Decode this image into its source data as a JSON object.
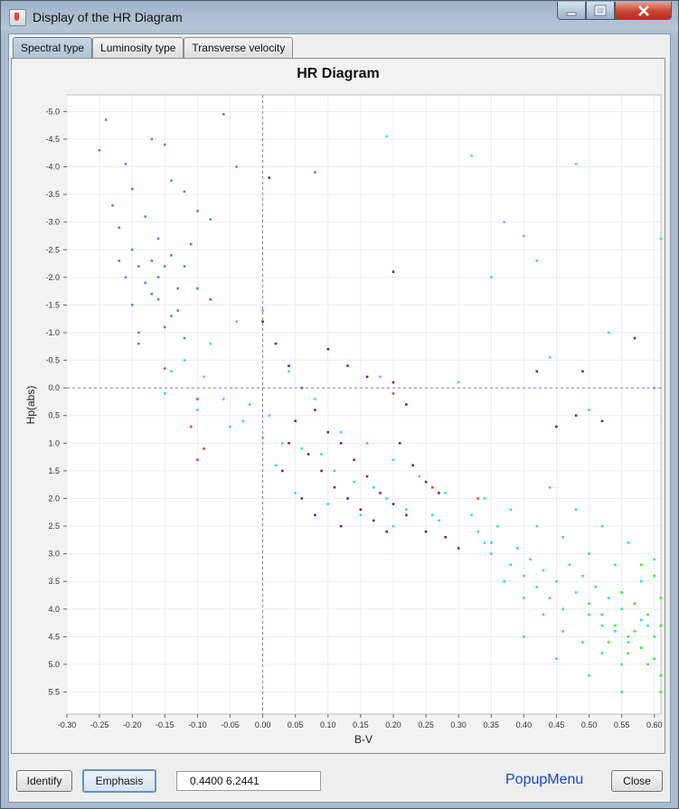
{
  "window": {
    "title": "Display of the HR Diagram",
    "controls": [
      "minimize",
      "maximize",
      "close"
    ]
  },
  "tabs": [
    {
      "label": "Spectral type",
      "selected": true
    },
    {
      "label": "Luminosity type",
      "selected": false
    },
    {
      "label": "Transverse velocity",
      "selected": false
    }
  ],
  "chart_data": {
    "type": "scatter",
    "title": "HR Diagram",
    "xlabel": "B-V",
    "ylabel": "Hp(abs)",
    "xlim": [
      -0.3,
      0.61
    ],
    "ylim": [
      -5.3,
      5.9
    ],
    "y_inverted": true,
    "grid": true,
    "x_ticks": [
      "-0.30",
      "-0.25",
      "-0.20",
      "-0.15",
      "-0.10",
      "-0.05",
      "0.00",
      "0.05",
      "0.10",
      "0.15",
      "0.20",
      "0.25",
      "0.30",
      "0.35",
      "0.40",
      "0.45",
      "0.50",
      "0.55",
      "0.60"
    ],
    "y_ticks": [
      "-5.0",
      "-4.5",
      "-4.0",
      "-3.5",
      "-3.0",
      "-2.5",
      "-2.0",
      "-1.5",
      "-1.0",
      "-0.5",
      "0.0",
      "0.5",
      "1.0",
      "1.5",
      "2.0",
      "2.5",
      "3.0",
      "3.5",
      "4.0",
      "4.5",
      "5.0",
      "5.5"
    ],
    "crosshair": {
      "x": 0.0,
      "y": 0.0
    },
    "series": [
      {
        "color": "#5b82e0",
        "points": [
          [
            -0.24,
            -4.85
          ],
          [
            -0.25,
            -4.3
          ],
          [
            -0.21,
            -4.05
          ],
          [
            -0.17,
            -4.5
          ],
          [
            -0.15,
            -4.4
          ],
          [
            -0.14,
            -3.75
          ],
          [
            -0.12,
            -3.55
          ],
          [
            -0.2,
            -3.6
          ],
          [
            -0.23,
            -3.3
          ],
          [
            -0.18,
            -3.1
          ],
          [
            -0.22,
            -2.9
          ],
          [
            -0.16,
            -2.7
          ],
          [
            -0.2,
            -2.5
          ],
          [
            -0.19,
            -2.2
          ],
          [
            -0.16,
            -2.0
          ],
          [
            -0.17,
            -1.7
          ],
          [
            -0.2,
            -1.5
          ],
          [
            -0.14,
            -1.3
          ],
          [
            -0.19,
            -1.0
          ],
          [
            -0.14,
            -2.4
          ],
          [
            -0.12,
            -2.2
          ],
          [
            -0.1,
            -3.2
          ],
          [
            -0.08,
            -3.05
          ],
          [
            -0.06,
            -4.95
          ],
          [
            -0.04,
            -4.0
          ],
          [
            0.08,
            -3.9
          ],
          [
            -0.22,
            -2.3
          ],
          [
            -0.18,
            -1.9
          ],
          [
            -0.16,
            -1.6
          ],
          [
            -0.15,
            -2.2
          ],
          [
            -0.13,
            -1.8
          ],
          [
            -0.11,
            -2.6
          ],
          [
            -0.17,
            -2.3
          ],
          [
            -0.21,
            -2.0
          ],
          [
            -0.19,
            -0.8
          ],
          [
            -0.15,
            -1.1
          ],
          [
            -0.13,
            -1.4
          ],
          [
            -0.12,
            -0.9
          ],
          [
            -0.1,
            -1.8
          ]
        ]
      },
      {
        "color": "#3ad8e6",
        "points": [
          [
            -0.15,
            0.1
          ],
          [
            -0.1,
            0.4
          ],
          [
            -0.05,
            0.7
          ],
          [
            0.0,
            0.9
          ],
          [
            0.02,
            1.4
          ],
          [
            0.05,
            1.9
          ],
          [
            0.1,
            2.1
          ],
          [
            0.15,
            2.3
          ],
          [
            0.2,
            2.5
          ],
          [
            0.25,
            2.6
          ],
          [
            0.3,
            2.9
          ],
          [
            0.35,
            3.0
          ],
          [
            -0.12,
            -0.5
          ],
          [
            -0.08,
            -0.8
          ],
          [
            -0.04,
            -1.2
          ],
          [
            0.0,
            -1.4
          ],
          [
            0.04,
            -0.3
          ],
          [
            0.08,
            0.2
          ],
          [
            0.12,
            0.8
          ],
          [
            0.16,
            1.0
          ],
          [
            0.2,
            1.3
          ],
          [
            0.24,
            1.6
          ],
          [
            0.28,
            1.9
          ],
          [
            0.32,
            2.3
          ],
          [
            -0.02,
            0.3
          ],
          [
            0.06,
            1.1
          ],
          [
            0.14,
            1.7
          ],
          [
            0.22,
            2.2
          ],
          [
            0.18,
            -0.2
          ],
          [
            0.3,
            -0.1
          ],
          [
            0.48,
            -4.05
          ],
          [
            0.32,
            -4.2
          ],
          [
            0.19,
            -4.55
          ],
          [
            0.37,
            -3.0
          ],
          [
            0.4,
            -2.75
          ],
          [
            0.42,
            -2.3
          ],
          [
            0.35,
            -2.0
          ],
          [
            0.44,
            -0.55
          ],
          [
            0.5,
            0.4
          ],
          [
            -0.14,
            -0.3
          ],
          [
            -0.06,
            0.2
          ],
          [
            0.01,
            0.5
          ],
          [
            0.09,
            1.2
          ],
          [
            0.17,
            1.8
          ],
          [
            0.26,
            2.3
          ],
          [
            0.33,
            2.6
          ],
          [
            -0.09,
            -0.2
          ],
          [
            -0.03,
            0.6
          ],
          [
            0.03,
            1.0
          ],
          [
            0.11,
            1.5
          ],
          [
            0.19,
            2.0
          ],
          [
            0.27,
            2.4
          ],
          [
            0.34,
            2.8
          ]
        ]
      },
      {
        "color": "#6a2a73",
        "points": [
          [
            0.0,
            -1.2
          ],
          [
            0.02,
            -0.8
          ],
          [
            0.04,
            -0.4
          ],
          [
            0.06,
            0.0
          ],
          [
            0.08,
            0.4
          ],
          [
            0.1,
            0.8
          ],
          [
            0.12,
            1.0
          ],
          [
            0.14,
            1.3
          ],
          [
            0.16,
            1.6
          ],
          [
            0.18,
            1.9
          ],
          [
            0.2,
            2.1
          ],
          [
            0.22,
            2.3
          ],
          [
            0.25,
            2.6
          ],
          [
            0.28,
            2.7
          ],
          [
            0.3,
            2.9
          ],
          [
            0.05,
            0.6
          ],
          [
            0.07,
            1.2
          ],
          [
            0.09,
            1.5
          ],
          [
            0.11,
            1.8
          ],
          [
            0.13,
            2.0
          ],
          [
            0.15,
            2.2
          ],
          [
            0.17,
            2.4
          ],
          [
            0.19,
            2.6
          ],
          [
            0.21,
            1.0
          ],
          [
            0.23,
            1.4
          ],
          [
            0.25,
            1.7
          ],
          [
            0.27,
            1.9
          ],
          [
            0.1,
            -0.7
          ],
          [
            0.13,
            -0.4
          ],
          [
            0.16,
            -0.2
          ],
          [
            0.2,
            -0.1
          ],
          [
            0.22,
            0.3
          ],
          [
            0.04,
            1.0
          ],
          [
            0.03,
            1.5
          ],
          [
            0.06,
            2.0
          ],
          [
            0.08,
            2.3
          ],
          [
            0.12,
            2.5
          ],
          [
            0.42,
            -0.3
          ],
          [
            0.49,
            -0.3
          ],
          [
            0.48,
            0.5
          ],
          [
            0.52,
            0.6
          ],
          [
            0.45,
            0.7
          ],
          [
            0.2,
            -2.1
          ],
          [
            0.57,
            -0.9
          ],
          [
            0.01,
            -3.8
          ]
        ]
      },
      {
        "color": "#2ee6a0",
        "points": [
          [
            0.35,
            2.8
          ],
          [
            0.38,
            3.2
          ],
          [
            0.4,
            3.4
          ],
          [
            0.42,
            3.6
          ],
          [
            0.44,
            3.8
          ],
          [
            0.46,
            4.0
          ],
          [
            0.48,
            3.7
          ],
          [
            0.5,
            4.1
          ],
          [
            0.52,
            4.3
          ],
          [
            0.54,
            4.4
          ],
          [
            0.56,
            4.6
          ],
          [
            0.58,
            4.2
          ],
          [
            0.36,
            2.5
          ],
          [
            0.39,
            2.9
          ],
          [
            0.41,
            3.1
          ],
          [
            0.43,
            3.3
          ],
          [
            0.45,
            3.5
          ],
          [
            0.47,
            3.2
          ],
          [
            0.49,
            3.4
          ],
          [
            0.51,
            3.6
          ],
          [
            0.53,
            3.8
          ],
          [
            0.55,
            4.0
          ],
          [
            0.57,
            3.9
          ],
          [
            0.59,
            4.3
          ],
          [
            0.37,
            3.5
          ],
          [
            0.4,
            3.8
          ],
          [
            0.43,
            4.1
          ],
          [
            0.46,
            4.4
          ],
          [
            0.49,
            4.6
          ],
          [
            0.52,
            4.8
          ],
          [
            0.55,
            5.0
          ],
          [
            0.34,
            2.0
          ],
          [
            0.38,
            2.2
          ],
          [
            0.42,
            2.5
          ],
          [
            0.46,
            2.7
          ],
          [
            0.5,
            3.0
          ],
          [
            0.54,
            3.2
          ],
          [
            0.58,
            3.5
          ],
          [
            0.4,
            4.5
          ],
          [
            0.45,
            4.9
          ],
          [
            0.5,
            5.2
          ],
          [
            0.55,
            5.5
          ],
          [
            0.44,
            1.8
          ],
          [
            0.48,
            2.2
          ],
          [
            0.52,
            2.5
          ],
          [
            0.56,
            2.8
          ],
          [
            0.6,
            3.1
          ],
          [
            0.61,
            -2.7
          ],
          [
            0.53,
            -1.0
          ],
          [
            0.6,
            0.0
          ]
        ]
      },
      {
        "color": "#3be82f",
        "points": [
          [
            0.5,
            3.9
          ],
          [
            0.52,
            4.1
          ],
          [
            0.54,
            4.3
          ],
          [
            0.56,
            4.5
          ],
          [
            0.58,
            4.7
          ],
          [
            0.6,
            4.9
          ],
          [
            0.55,
            3.7
          ],
          [
            0.57,
            3.9
          ],
          [
            0.59,
            4.1
          ],
          [
            0.61,
            4.3
          ],
          [
            0.53,
            4.6
          ],
          [
            0.56,
            4.8
          ],
          [
            0.59,
            5.0
          ],
          [
            0.61,
            5.2
          ],
          [
            0.6,
            3.4
          ],
          [
            0.58,
            3.2
          ],
          [
            0.61,
            3.8
          ],
          [
            0.57,
            4.4
          ],
          [
            0.6,
            4.5
          ],
          [
            0.61,
            5.5
          ]
        ]
      },
      {
        "color": "#e8483a",
        "points": [
          [
            -0.15,
            -0.35
          ],
          [
            -0.1,
            0.2
          ],
          [
            -0.11,
            0.7
          ],
          [
            -0.1,
            1.3
          ],
          [
            -0.09,
            1.1
          ],
          [
            0.2,
            0.1
          ],
          [
            0.33,
            2.0
          ],
          [
            0.26,
            1.8
          ],
          [
            -0.08,
            -1.6
          ]
        ]
      }
    ]
  },
  "coords_readout": "0.4400     6.2441",
  "buttons": {
    "identify": "Identify",
    "emphasis": "Emphasis",
    "close": "Close"
  },
  "popup_menu": "PopupMenu"
}
